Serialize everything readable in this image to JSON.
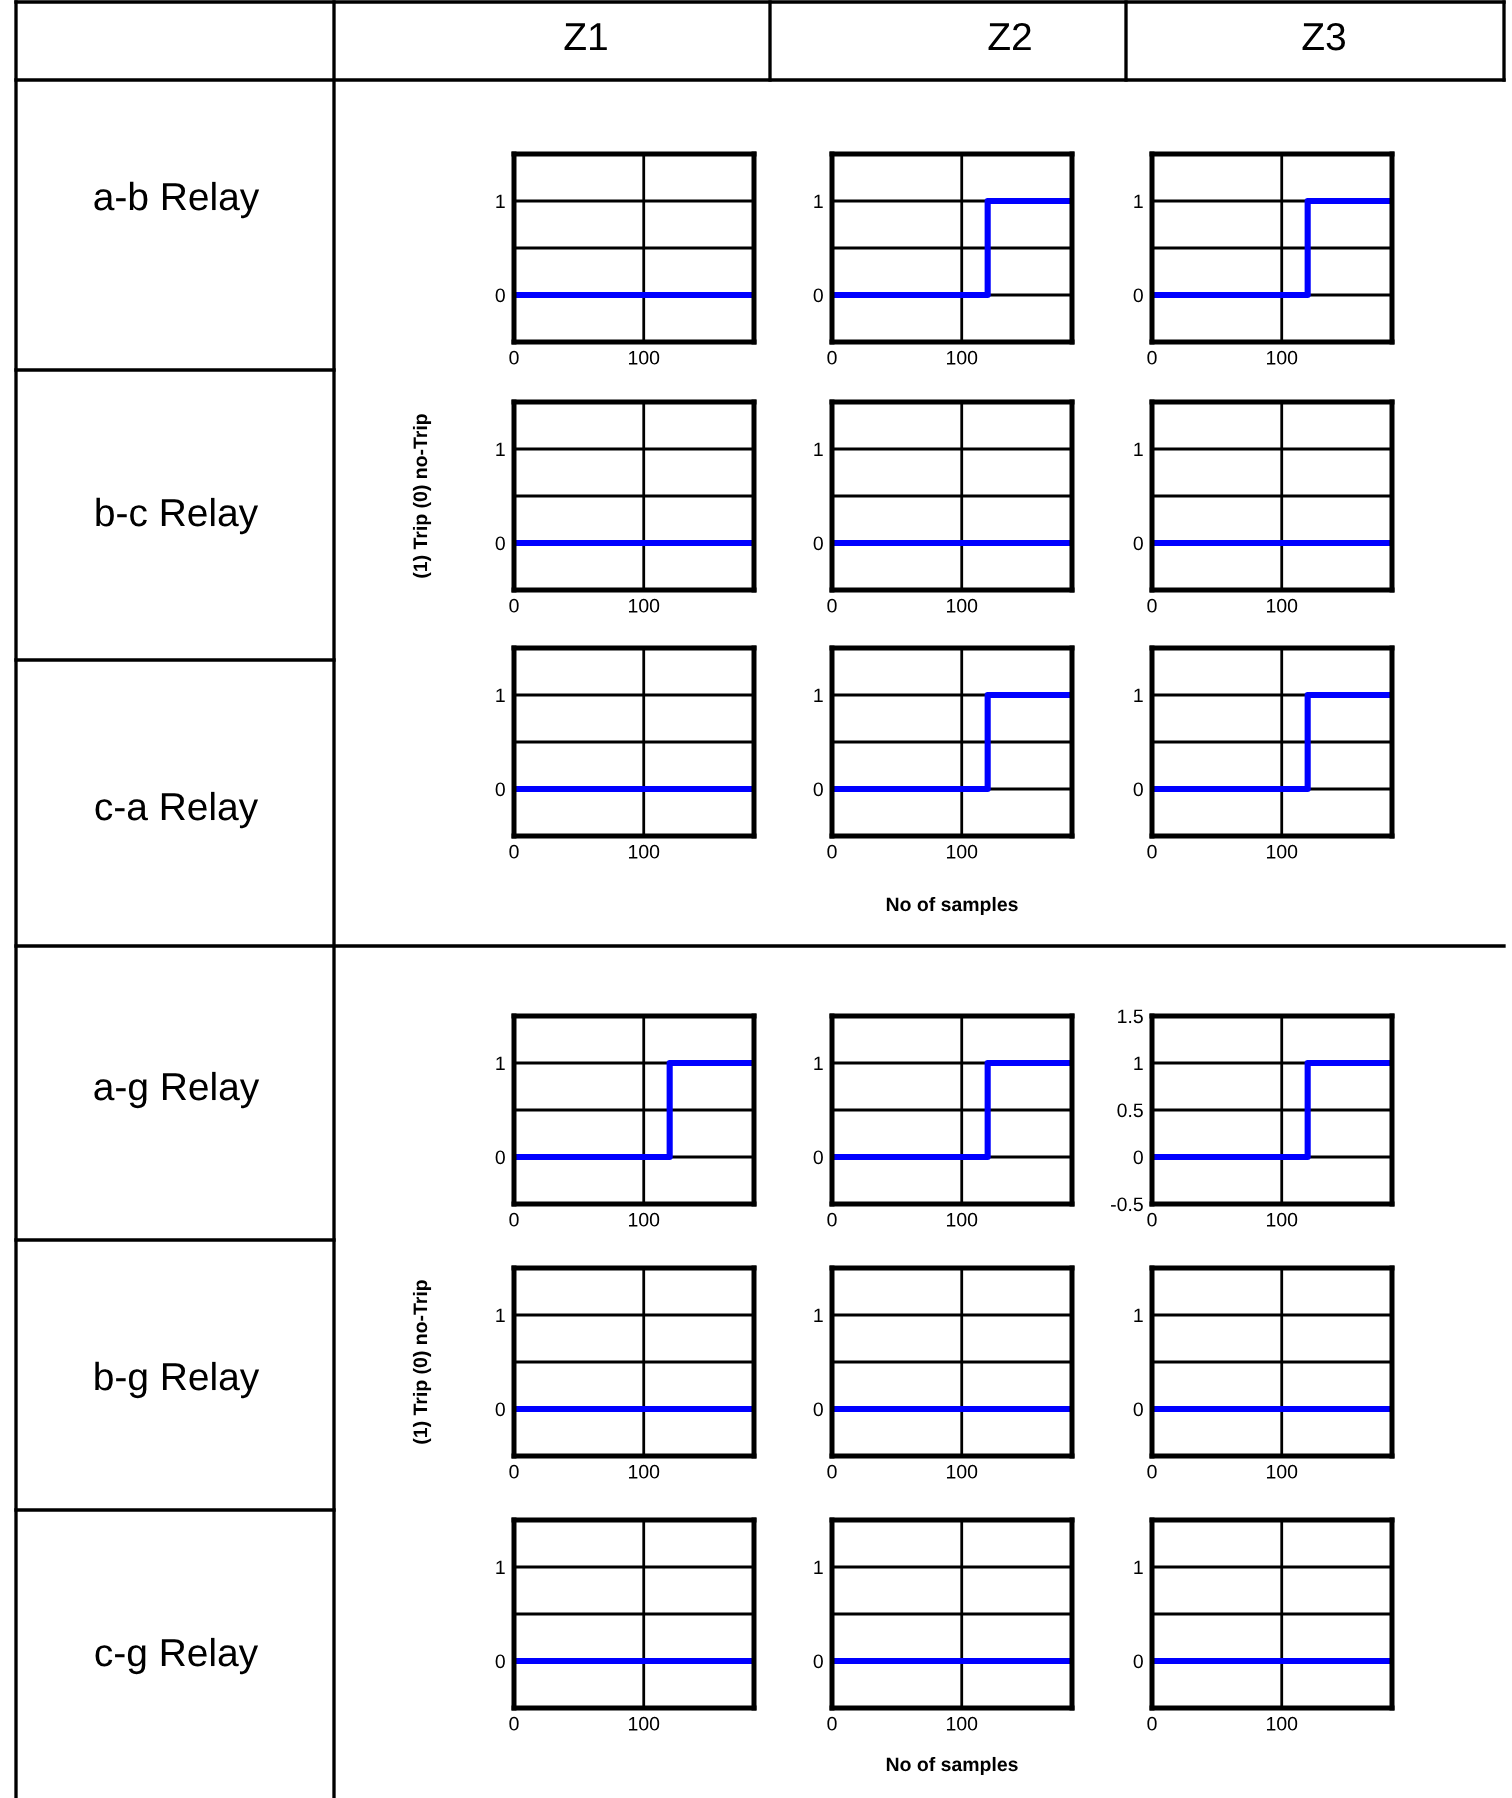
{
  "chart_data": [
    {
      "type": "other",
      "annotations": [
        "Z1",
        "Z2",
        "Z3",
        "a-b Relay",
        "b-c Relay",
        "c-a Relay",
        "a-g Relay",
        "b-g Relay",
        "c-g Relay",
        "(1) Trip (0) no-Trip",
        "(1) Trip (0) no-Trip",
        "No of samples",
        "No of samples"
      ]
    },
    {
      "type": "step",
      "x": [
        0,
        120,
        185
      ],
      "values": [
        0,
        0,
        0
      ],
      "color": "#0000ff",
      "xlim": [
        0,
        185
      ],
      "ylim": [
        -0.5,
        1.5
      ],
      "xticks": [
        0,
        100
      ],
      "yticks": [
        {
          "value": -0.5,
          "label": null
        },
        0,
        {
          "value": 0.5,
          "label": null
        },
        1,
        {
          "value": 1.5,
          "label": null
        }
      ],
      "grid": true
    },
    {
      "type": "step",
      "x": [
        0,
        120,
        185
      ],
      "values": [
        0,
        1,
        1
      ],
      "color": "#0000ff",
      "xlim": [
        0,
        185
      ],
      "ylim": [
        -0.5,
        1.5
      ],
      "xticks": [
        0,
        100
      ],
      "yticks": [
        {
          "value": -0.5,
          "label": null
        },
        0,
        {
          "value": 0.5,
          "label": null
        },
        1,
        {
          "value": 1.5,
          "label": null
        }
      ],
      "grid": true
    },
    {
      "type": "step",
      "x": [
        0,
        120,
        185
      ],
      "values": [
        0,
        1,
        1
      ],
      "color": "#0000ff",
      "xlim": [
        0,
        185
      ],
      "ylim": [
        -0.5,
        1.5
      ],
      "xticks": [
        0,
        100
      ],
      "yticks": [
        {
          "value": -0.5,
          "label": null
        },
        0,
        {
          "value": 0.5,
          "label": null
        },
        1,
        {
          "value": 1.5,
          "label": null
        }
      ],
      "grid": true
    },
    {
      "type": "step",
      "x": [
        0,
        120,
        185
      ],
      "values": [
        0,
        0,
        0
      ],
      "color": "#0000ff",
      "xlim": [
        0,
        185
      ],
      "ylim": [
        -0.5,
        1.5
      ],
      "xticks": [
        0,
        100
      ],
      "yticks": [
        {
          "value": -0.5,
          "label": null
        },
        0,
        {
          "value": 0.5,
          "label": null
        },
        1,
        {
          "value": 1.5,
          "label": null
        }
      ],
      "grid": true
    },
    {
      "type": "step",
      "x": [
        0,
        120,
        185
      ],
      "values": [
        0,
        0,
        0
      ],
      "color": "#0000ff",
      "xlim": [
        0,
        185
      ],
      "ylim": [
        -0.5,
        1.5
      ],
      "xticks": [
        0,
        100
      ],
      "yticks": [
        {
          "value": -0.5,
          "label": null
        },
        0,
        {
          "value": 0.5,
          "label": null
        },
        1,
        {
          "value": 1.5,
          "label": null
        }
      ],
      "grid": true
    },
    {
      "type": "step",
      "x": [
        0,
        120,
        185
      ],
      "values": [
        0,
        0,
        0
      ],
      "color": "#0000ff",
      "xlim": [
        0,
        185
      ],
      "ylim": [
        -0.5,
        1.5
      ],
      "xticks": [
        0,
        100
      ],
      "yticks": [
        {
          "value": -0.5,
          "label": null
        },
        0,
        {
          "value": 0.5,
          "label": null
        },
        1,
        {
          "value": 1.5,
          "label": null
        }
      ],
      "grid": true
    },
    {
      "type": "step",
      "x": [
        0,
        120,
        185
      ],
      "values": [
        0,
        0,
        0
      ],
      "color": "#0000ff",
      "xlim": [
        0,
        185
      ],
      "ylim": [
        -0.5,
        1.5
      ],
      "xticks": [
        0,
        100
      ],
      "yticks": [
        {
          "value": -0.5,
          "label": null
        },
        0,
        {
          "value": 0.5,
          "label": null
        },
        1,
        {
          "value": 1.5,
          "label": null
        }
      ],
      "grid": true
    },
    {
      "type": "step",
      "x": [
        0,
        120,
        185
      ],
      "values": [
        0,
        1,
        1
      ],
      "color": "#0000ff",
      "xlim": [
        0,
        185
      ],
      "ylim": [
        -0.5,
        1.5
      ],
      "xticks": [
        0,
        100
      ],
      "yticks": [
        {
          "value": -0.5,
          "label": null
        },
        0,
        {
          "value": 0.5,
          "label": null
        },
        1,
        {
          "value": 1.5,
          "label": null
        }
      ],
      "grid": true
    },
    {
      "type": "step",
      "x": [
        0,
        120,
        185
      ],
      "values": [
        0,
        1,
        1
      ],
      "color": "#0000ff",
      "xlim": [
        0,
        185
      ],
      "ylim": [
        -0.5,
        1.5
      ],
      "xticks": [
        0,
        100
      ],
      "yticks": [
        {
          "value": -0.5,
          "label": null
        },
        0,
        {
          "value": 0.5,
          "label": null
        },
        1,
        {
          "value": 1.5,
          "label": null
        }
      ],
      "grid": true
    },
    {
      "type": "step",
      "x": [
        0,
        120,
        185
      ],
      "values": [
        0,
        1,
        1
      ],
      "color": "#0000ff",
      "xlim": [
        0,
        185
      ],
      "ylim": [
        -0.5,
        1.5
      ],
      "xticks": [
        0,
        100
      ],
      "yticks": [
        {
          "value": -0.5,
          "label": null
        },
        0,
        {
          "value": 0.5,
          "label": null
        },
        1,
        {
          "value": 1.5,
          "label": null
        }
      ],
      "grid": true
    },
    {
      "type": "step",
      "x": [
        0,
        120,
        185
      ],
      "values": [
        0,
        1,
        1
      ],
      "color": "#0000ff",
      "xlim": [
        0,
        185
      ],
      "ylim": [
        -0.5,
        1.5
      ],
      "xticks": [
        0,
        100
      ],
      "yticks": [
        {
          "value": -0.5,
          "label": null
        },
        0,
        {
          "value": 0.5,
          "label": null
        },
        1,
        {
          "value": 1.5,
          "label": null
        }
      ],
      "grid": true
    },
    {
      "type": "step",
      "x": [
        0,
        120,
        185
      ],
      "values": [
        0,
        1,
        1
      ],
      "color": "#0000ff",
      "xlim": [
        0,
        185
      ],
      "ylim": [
        -0.5,
        1.5
      ],
      "xticks": [
        0,
        100
      ],
      "yticks": [
        -0.5,
        0,
        0.5,
        1,
        1.5
      ],
      "grid": true
    },
    {
      "type": "step",
      "x": [
        0,
        120,
        185
      ],
      "values": [
        0,
        0,
        0
      ],
      "color": "#0000ff",
      "xlim": [
        0,
        185
      ],
      "ylim": [
        -0.5,
        1.5
      ],
      "xticks": [
        0,
        100
      ],
      "yticks": [
        {
          "value": -0.5,
          "label": null
        },
        0,
        {
          "value": 0.5,
          "label": null
        },
        1,
        {
          "value": 1.5,
          "label": null
        }
      ],
      "grid": true
    },
    {
      "type": "step",
      "x": [
        0,
        120,
        185
      ],
      "values": [
        0,
        0,
        0
      ],
      "color": "#0000ff",
      "xlim": [
        0,
        185
      ],
      "ylim": [
        -0.5,
        1.5
      ],
      "xticks": [
        0,
        100
      ],
      "yticks": [
        {
          "value": -0.5,
          "label": null
        },
        0,
        {
          "value": 0.5,
          "label": null
        },
        1,
        {
          "value": 1.5,
          "label": null
        }
      ],
      "grid": true
    },
    {
      "type": "step",
      "x": [
        0,
        120,
        185
      ],
      "values": [
        0,
        0,
        0
      ],
      "color": "#0000ff",
      "xlim": [
        0,
        185
      ],
      "ylim": [
        -0.5,
        1.5
      ],
      "xticks": [
        0,
        100
      ],
      "yticks": [
        {
          "value": -0.5,
          "label": null
        },
        0,
        {
          "value": 0.5,
          "label": null
        },
        1,
        {
          "value": 1.5,
          "label": null
        }
      ],
      "grid": true
    },
    {
      "type": "step",
      "x": [
        0,
        120,
        185
      ],
      "values": [
        0,
        0,
        0
      ],
      "color": "#0000ff",
      "xlim": [
        0,
        185
      ],
      "ylim": [
        -0.5,
        1.5
      ],
      "xticks": [
        0,
        100
      ],
      "yticks": [
        {
          "value": -0.5,
          "label": null
        },
        0,
        {
          "value": 0.5,
          "label": null
        },
        1,
        {
          "value": 1.5,
          "label": null
        }
      ],
      "grid": true
    },
    {
      "type": "step",
      "x": [
        0,
        120,
        185
      ],
      "values": [
        0,
        0,
        0
      ],
      "color": "#0000ff",
      "xlim": [
        0,
        185
      ],
      "ylim": [
        -0.5,
        1.5
      ],
      "xticks": [
        0,
        100
      ],
      "yticks": [
        {
          "value": -0.5,
          "label": null
        },
        0,
        {
          "value": 0.5,
          "label": null
        },
        1,
        {
          "value": 1.5,
          "label": null
        }
      ],
      "grid": true
    },
    {
      "type": "step",
      "x": [
        0,
        120,
        185
      ],
      "values": [
        0,
        0,
        0
      ],
      "color": "#0000ff",
      "xlim": [
        0,
        185
      ],
      "ylim": [
        -0.5,
        1.5
      ],
      "xticks": [
        0,
        100
      ],
      "yticks": [
        {
          "value": -0.5,
          "label": null
        },
        0,
        {
          "value": 0.5,
          "label": null
        },
        1,
        {
          "value": 1.5,
          "label": null
        }
      ],
      "grid": true
    }
  ]
}
